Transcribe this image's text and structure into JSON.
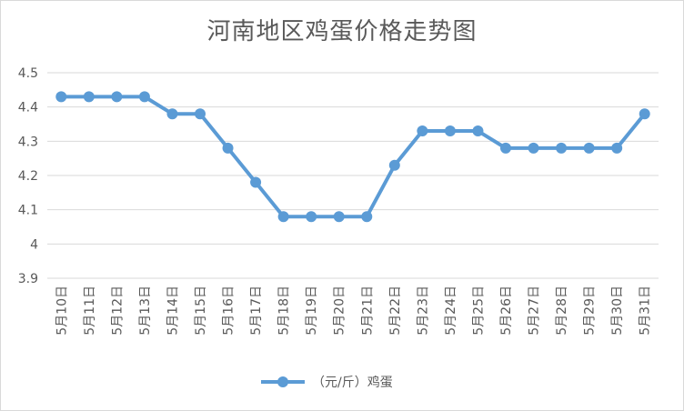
{
  "chart_data": {
    "type": "line",
    "title": "河南地区鸡蛋价格走势图",
    "xlabel": "",
    "ylabel": "",
    "ylim": [
      3.9,
      4.5
    ],
    "yticks": [
      "3.9",
      "4",
      "4.1",
      "4.2",
      "4.3",
      "4.4",
      "4.5"
    ],
    "ytick_values": [
      3.9,
      4.0,
      4.1,
      4.2,
      4.3,
      4.4,
      4.5
    ],
    "grid": true,
    "legend_position": "bottom",
    "categories": [
      "5月10日",
      "5月11日",
      "5月12日",
      "5月13日",
      "5月14日",
      "5月15日",
      "5月16日",
      "5月17日",
      "5月18日",
      "5月19日",
      "5月20日",
      "5月21日",
      "5月22日",
      "5月23日",
      "5月24日",
      "5月25日",
      "5月26日",
      "5月27日",
      "5月28日",
      "5月29日",
      "5月30日",
      "5月31日"
    ],
    "series": [
      {
        "name": "（元/斤）鸡蛋",
        "color": "#5b9bd5",
        "values": [
          4.43,
          4.43,
          4.43,
          4.43,
          4.38,
          4.38,
          4.28,
          4.18,
          4.08,
          4.08,
          4.08,
          4.08,
          4.23,
          4.33,
          4.33,
          4.33,
          4.28,
          4.28,
          4.28,
          4.28,
          4.28,
          4.38
        ]
      }
    ]
  }
}
